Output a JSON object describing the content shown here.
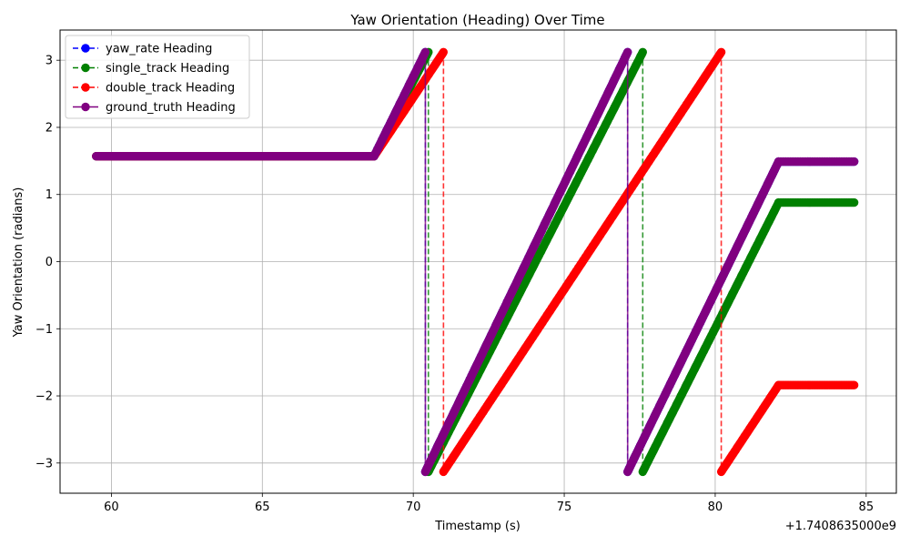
{
  "chart_data": {
    "type": "line",
    "title": "Yaw Orientation (Heading) Over Time",
    "xlabel": "Timestamp (s)",
    "ylabel": "Yaw Orientation (radians)",
    "x_offset_label": "+1.7408635000e9",
    "xlim": [
      58.3,
      86.0
    ],
    "ylim": [
      -3.45,
      3.45
    ],
    "x_ticks": [
      60,
      65,
      70,
      75,
      80,
      85
    ],
    "y_ticks": [
      -3,
      -2,
      -1,
      0,
      1,
      2,
      3
    ],
    "grid": true,
    "legend_position": "top-left",
    "series": [
      {
        "name": "yaw_rate Heading",
        "color": "#0000ff",
        "linestyle": "dashed",
        "marker": "circle",
        "points": [
          [
            59.5,
            1.57
          ],
          [
            68.7,
            1.57
          ],
          [
            70.4,
            3.12
          ],
          [
            70.4,
            -3.13
          ],
          [
            77.1,
            3.12
          ],
          [
            77.1,
            -3.13
          ],
          [
            82.1,
            1.49
          ],
          [
            84.6,
            1.49
          ]
        ]
      },
      {
        "name": "single_track Heading",
        "color": "#008000",
        "linestyle": "dashed",
        "marker": "circle",
        "points": [
          [
            59.5,
            1.57
          ],
          [
            68.7,
            1.57
          ],
          [
            70.5,
            3.12
          ],
          [
            70.5,
            -3.13
          ],
          [
            77.6,
            3.12
          ],
          [
            77.6,
            -3.13
          ],
          [
            82.1,
            0.88
          ],
          [
            84.6,
            0.88
          ]
        ]
      },
      {
        "name": "double_track Heading",
        "color": "#ff0000",
        "linestyle": "dashed",
        "marker": "circle",
        "points": [
          [
            59.5,
            1.57
          ],
          [
            68.7,
            1.57
          ],
          [
            71.0,
            3.12
          ],
          [
            71.0,
            -3.13
          ],
          [
            80.2,
            3.12
          ],
          [
            80.2,
            -3.13
          ],
          [
            82.1,
            -1.84
          ],
          [
            84.6,
            -1.84
          ]
        ]
      },
      {
        "name": "ground_truth Heading",
        "color": "#800080",
        "linestyle": "solid",
        "marker": "circle",
        "points": [
          [
            59.5,
            1.57
          ],
          [
            68.7,
            1.57
          ],
          [
            70.4,
            3.12
          ],
          [
            70.4,
            -3.13
          ],
          [
            77.1,
            3.12
          ],
          [
            77.1,
            -3.13
          ],
          [
            82.1,
            1.49
          ],
          [
            84.6,
            1.49
          ]
        ]
      }
    ]
  }
}
